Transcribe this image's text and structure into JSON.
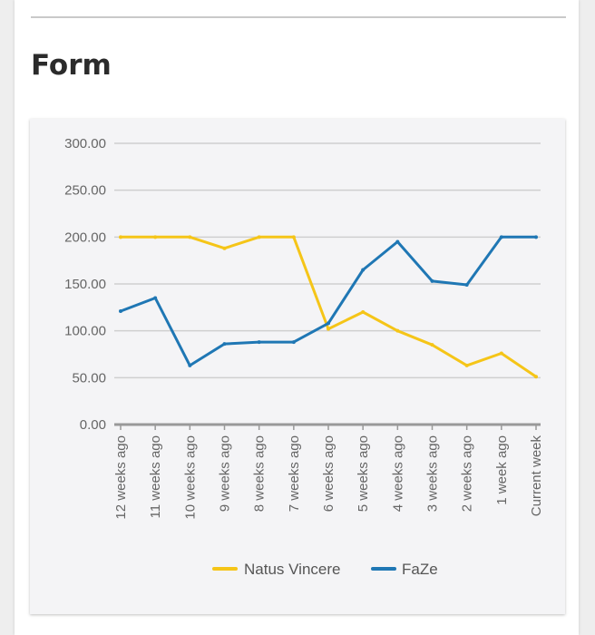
{
  "section": {
    "title": "Form"
  },
  "colors": {
    "natus_vincere": "#f5c518",
    "faze": "#1f77b4",
    "grid": "#cfcfcf",
    "axis": "#999999"
  },
  "chart_data": {
    "type": "line",
    "categories": [
      "12 weeks ago",
      "11 weeks ago",
      "10 weeks ago",
      "9 weeks ago",
      "8 weeks ago",
      "7 weeks ago",
      "6 weeks ago",
      "5 weeks ago",
      "4 weeks ago",
      "3 weeks ago",
      "2 weeks ago",
      "1 week ago",
      "Current week"
    ],
    "series": [
      {
        "name": "Natus Vincere",
        "color": "#f5c518",
        "values": [
          200,
          200,
          200,
          188,
          200,
          200,
          102,
          120,
          100,
          85,
          63,
          76,
          51
        ]
      },
      {
        "name": "FaZe",
        "color": "#1f77b4",
        "values": [
          121,
          135,
          63,
          86,
          88,
          88,
          108,
          165,
          195,
          153,
          149,
          200,
          200
        ]
      }
    ],
    "ylim": [
      0,
      300
    ],
    "yticks": [
      "0.00",
      "50.00",
      "100.00",
      "150.00",
      "200.00",
      "250.00",
      "300.00"
    ],
    "grid": true,
    "legend": "bottom"
  }
}
